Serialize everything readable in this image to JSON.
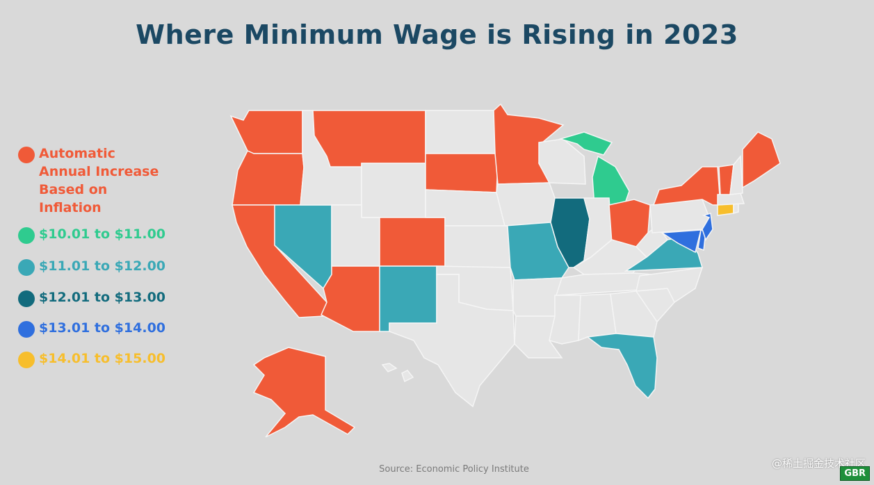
{
  "title": "Where Minimum Wage is Rising in 2023",
  "legend": [
    {
      "label": "Automatic\nAnnual Increase\nBased on\nInflation",
      "color": "#f05a38",
      "text_color": "#f05a38"
    },
    {
      "label": "$10.01 to $11.00",
      "color": "#2fcb8f",
      "text_color": "#2fcb8f"
    },
    {
      "label": "$11.01 to $12.00",
      "color": "#3aa8b6",
      "text_color": "#3aa8b6"
    },
    {
      "label": "$12.01 to $13.00",
      "color": "#126b7d",
      "text_color": "#126b7d"
    },
    {
      "label": "$13.01 to $14.00",
      "color": "#2f6fde",
      "text_color": "#2f6fde"
    },
    {
      "label": "$14.01 to $15.00",
      "color": "#f7be2c",
      "text_color": "#f7be2c"
    }
  ],
  "colors": {
    "inflation": "#f05a38",
    "b10_11": "#2fcb8f",
    "b11_12": "#3aa8b6",
    "b12_13": "#126b7d",
    "b13_14": "#2f6fde",
    "b14_15": "#f7be2c",
    "none": "#e6e6e6",
    "border": "#f5f5f5"
  },
  "states": {
    "inflation": [
      "Washington",
      "Oregon",
      "California",
      "Montana",
      "South Dakota",
      "Minnesota",
      "Colorado",
      "Arizona",
      "Ohio",
      "New York",
      "Vermont",
      "Maine",
      "Alaska"
    ],
    "b10_11": [
      "Michigan"
    ],
    "b11_12": [
      "Nevada",
      "New Mexico",
      "Missouri",
      "Virginia",
      "Florida"
    ],
    "b12_13": [
      "Illinois"
    ],
    "b13_14": [
      "New Jersey",
      "Maryland",
      "Delaware"
    ],
    "b14_15": [
      "Connecticut"
    ]
  },
  "source": "Source: Economic Policy Institute",
  "watermark": "@稀土掘金技术社区",
  "badge": "GBR"
}
